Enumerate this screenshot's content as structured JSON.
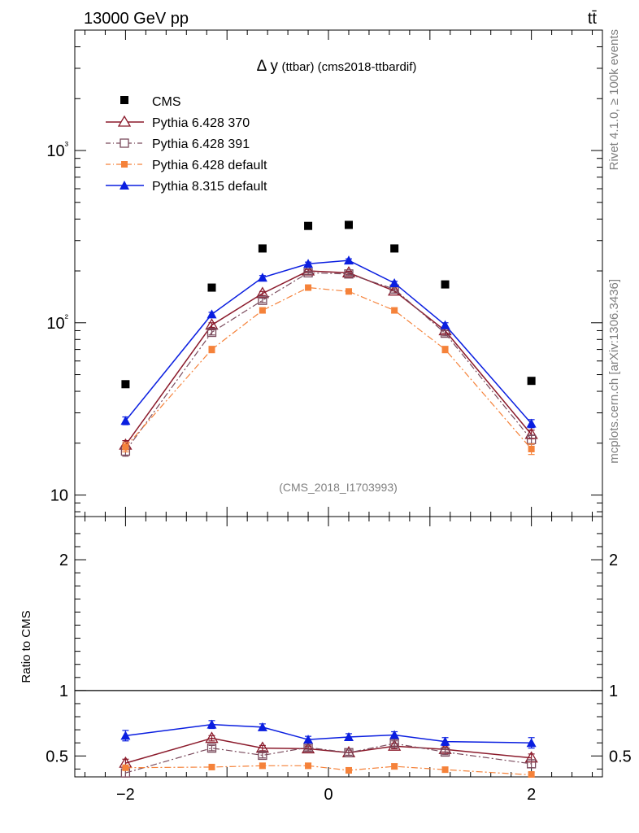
{
  "header": {
    "energy_label": "13000 GeV pp",
    "process_label": "tt̄"
  },
  "side_labels": {
    "rivet": "Rivet 4.1.0, ≥ 100k events",
    "mcplots": "mcplots.cern.ch [arXiv:1306.3436]"
  },
  "colors": {
    "cms": "#000000",
    "p6_370": "#8b1a2b",
    "p6_391": "#7a4a5c",
    "p6_default": "#f5823a",
    "p8_default": "#0a1ee0"
  },
  "chart_data": [
    {
      "type": "scatter",
      "title": "Δ y(ttbar) (cms2018-ttbardif)",
      "title_main": "Δ y",
      "title_sub": "(ttbar) (cms2018-ttbardif)",
      "watermark": "(CMS_2018_I1703993)",
      "yscale": "log",
      "xlim": [
        -2.5,
        2.7
      ],
      "ylim": [
        7.5,
        5000
      ],
      "ytick_labels": [
        {
          "value": 10,
          "label": "10"
        },
        {
          "value": 100,
          "label": "10²"
        },
        {
          "value": 1000,
          "label": "10³"
        }
      ],
      "x": [
        -2.0,
        -1.15,
        -0.65,
        -0.2,
        0.2,
        0.65,
        1.15,
        2.0
      ],
      "legend_position": "top-left",
      "series": [
        {
          "name": "CMS",
          "key": "cms",
          "marker": "square-filled",
          "line": "none",
          "values": [
            44,
            160,
            270,
            365,
            370,
            270,
            167,
            46
          ],
          "errors": [
            0,
            0,
            0,
            0,
            0,
            0,
            0,
            0
          ]
        },
        {
          "name": "Pythia 6.428 370",
          "key": "p6_370",
          "marker": "triangle-open",
          "line": "solid",
          "values": [
            19.5,
            97,
            148,
            200,
            195,
            153,
            90,
            22.5
          ],
          "errors": [
            1.2,
            3,
            4,
            4,
            4,
            4,
            3,
            1.3
          ]
        },
        {
          "name": "Pythia 6.428 391",
          "key": "p6_391",
          "marker": "square-open",
          "line": "dashdot",
          "values": [
            18,
            88,
            135,
            195,
            192,
            157,
            87,
            21
          ],
          "errors": [
            1.2,
            3,
            4,
            4,
            4,
            4,
            3,
            1.3
          ]
        },
        {
          "name": "Pythia 6.428 default",
          "key": "p6_default",
          "marker": "square-filled",
          "line": "dashdot",
          "values": [
            19,
            70,
            118,
            160,
            152,
            118,
            70,
            18.5
          ],
          "errors": [
            1.2,
            3,
            4,
            4,
            4,
            4,
            3,
            1.3
          ]
        },
        {
          "name": "Pythia 8.315 default",
          "key": "p8_default",
          "marker": "triangle-filled",
          "line": "solid",
          "values": [
            27,
            112,
            183,
            220,
            230,
            170,
            97,
            26
          ],
          "errors": [
            1.4,
            3,
            5,
            5,
            5,
            4,
            3,
            1.4
          ]
        }
      ]
    },
    {
      "type": "scatter",
      "title": "",
      "ylabel": "Ratio to CMS",
      "xlim": [
        -2.5,
        2.7
      ],
      "ylim": [
        0.34,
        2.33
      ],
      "yticks": [
        0.5,
        1,
        2
      ],
      "ytick_labels": [
        "0.5",
        "1",
        "2"
      ],
      "xticks": [
        -2,
        0,
        2
      ],
      "xtick_labels": [
        "−2",
        "0",
        "2"
      ],
      "x": [
        -2.0,
        -1.15,
        -0.65,
        -0.2,
        0.2,
        0.65,
        1.15,
        2.0
      ],
      "reference_line": 1,
      "series": [
        {
          "name": "Pythia 6.428 370",
          "key": "p6_370",
          "marker": "triangle-open",
          "line": "solid",
          "values": [
            0.445,
            0.635,
            0.56,
            0.555,
            0.525,
            0.575,
            0.55,
            0.485
          ],
          "errors": [
            0.03,
            0.02,
            0.02,
            0.02,
            0.02,
            0.02,
            0.02,
            0.03
          ]
        },
        {
          "name": "Pythia 6.428 391",
          "key": "p6_391",
          "marker": "square-open",
          "line": "dashdot",
          "values": [
            0.37,
            0.56,
            0.505,
            0.565,
            0.525,
            0.595,
            0.53,
            0.44
          ],
          "errors": [
            0.03,
            0.02,
            0.02,
            0.02,
            0.02,
            0.02,
            0.02,
            0.03
          ]
        },
        {
          "name": "Pythia 6.428 default",
          "key": "p6_default",
          "marker": "square-filled",
          "line": "dashdot",
          "values": [
            0.41,
            0.415,
            0.425,
            0.425,
            0.39,
            0.42,
            0.395,
            0.355
          ],
          "errors": [
            0.02,
            0.02,
            0.02,
            0.02,
            0.02,
            0.02,
            0.02,
            0.02
          ]
        },
        {
          "name": "Pythia 8.315 default",
          "key": "p8_default",
          "marker": "triangle-filled",
          "line": "solid",
          "values": [
            0.655,
            0.74,
            0.72,
            0.625,
            0.645,
            0.66,
            0.61,
            0.6
          ],
          "errors": [
            0.04,
            0.03,
            0.025,
            0.025,
            0.025,
            0.025,
            0.03,
            0.04
          ]
        }
      ]
    }
  ]
}
